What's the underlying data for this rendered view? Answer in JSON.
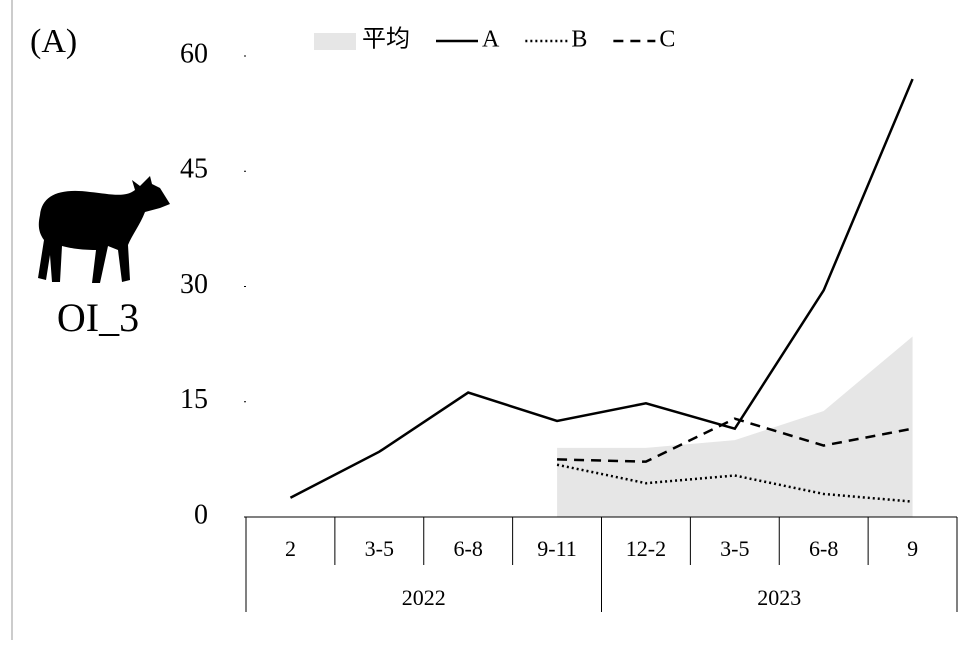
{
  "panel_label": "(A)",
  "subject_label": "OI_3",
  "chart_data": {
    "type": "line",
    "categories": [
      "2",
      "3-5",
      "6-8",
      "9-11",
      "12-2",
      "3-5",
      "6-8",
      "9"
    ],
    "x_groups": [
      "2022",
      "2023"
    ],
    "ylim": [
      0,
      60
    ],
    "yticks": [
      0,
      15,
      30,
      45,
      60
    ],
    "series": [
      {
        "name": "平均",
        "type": "area",
        "color": "#e6e6e6",
        "values": [
          null,
          null,
          null,
          9,
          9,
          10,
          13.8,
          23.5
        ]
      },
      {
        "name": "A",
        "type": "line",
        "dash": "solid",
        "color": "#000000",
        "values": [
          2.5,
          8.5,
          16.2,
          12.5,
          14.8,
          11.5,
          29.5,
          57
        ]
      },
      {
        "name": "B",
        "type": "line",
        "dash": "dotted",
        "color": "#000000",
        "values": [
          null,
          null,
          null,
          6.8,
          4.4,
          5.4,
          3,
          2
        ]
      },
      {
        "name": "C",
        "type": "line",
        "dash": "dashed",
        "color": "#000000",
        "values": [
          null,
          null,
          null,
          7.5,
          7.2,
          12.8,
          9.3,
          11.5
        ]
      }
    ]
  }
}
